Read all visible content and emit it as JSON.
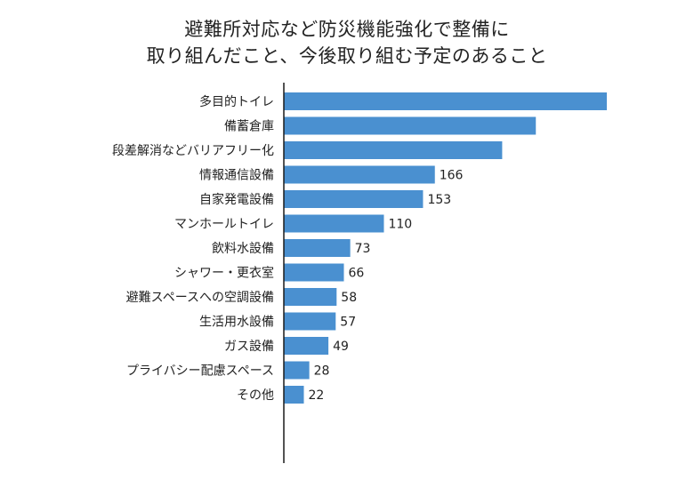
{
  "chart_data": {
    "type": "bar",
    "orientation": "horizontal",
    "title_lines": [
      "避難所対応など防災機能強化で整備に",
      "取り組んだこと、今後取り組む予定のあること"
    ],
    "categories": [
      "多目的トイレ",
      "備蓄倉庫",
      "段差解消などバリアフリー化",
      "情報通信設備",
      "自家発電設備",
      "マンホールトイレ",
      "飲料水設備",
      "シャワー・更衣室",
      "避難スペースへの空調設備",
      "生活用水設備",
      "ガス設備",
      "プライバシー配慮スペース",
      "その他"
    ],
    "values": [
      355,
      277,
      240,
      166,
      153,
      110,
      73,
      66,
      58,
      57,
      49,
      28,
      22
    ],
    "value_labels": [
      "",
      "",
      "",
      "166",
      "153",
      "110",
      "73",
      "66",
      "58",
      "57",
      "49",
      "28",
      "22"
    ],
    "xlim": [
      0,
      355
    ],
    "grid": false,
    "legend": "none",
    "colors": {
      "bar": "#4a90d0",
      "axis": "#1a1a1a",
      "text": "#222222"
    }
  }
}
